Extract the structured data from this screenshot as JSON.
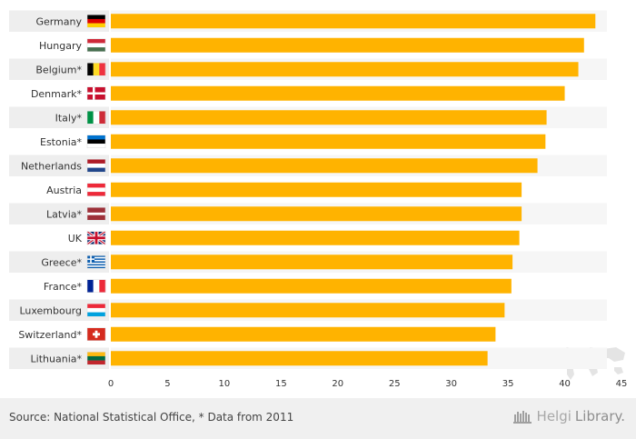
{
  "chart_data": {
    "type": "bar",
    "orientation": "horizontal",
    "categories": [
      "Germany",
      "Hungary",
      "Belgium*",
      "Denmark*",
      "Italy*",
      "Estonia*",
      "Netherlands",
      "Austria",
      "Latvia*",
      "UK",
      "Greece*",
      "France*",
      "Luxembourg",
      "Switzerland*",
      "Lithuania*"
    ],
    "values": [
      42.7,
      41.7,
      41.2,
      40.0,
      38.4,
      38.3,
      37.6,
      36.2,
      36.2,
      36.0,
      35.4,
      35.3,
      34.7,
      33.9,
      33.2
    ],
    "flags": [
      "de",
      "hu",
      "be",
      "dk",
      "it",
      "ee",
      "nl",
      "at",
      "lv",
      "uk",
      "gr",
      "fr",
      "lu",
      "ch",
      "lt"
    ],
    "xlim": [
      0,
      45
    ],
    "xticks": [
      0,
      5,
      10,
      15,
      20,
      25,
      30,
      35,
      40,
      45
    ],
    "bar_color": "#FFB300",
    "title": "",
    "xlabel": "",
    "ylabel": ""
  },
  "footer": {
    "source": "Source: National Statistical Office, * Data from 2011",
    "brand_part1": "Helgi",
    "brand_part2": "Library."
  }
}
